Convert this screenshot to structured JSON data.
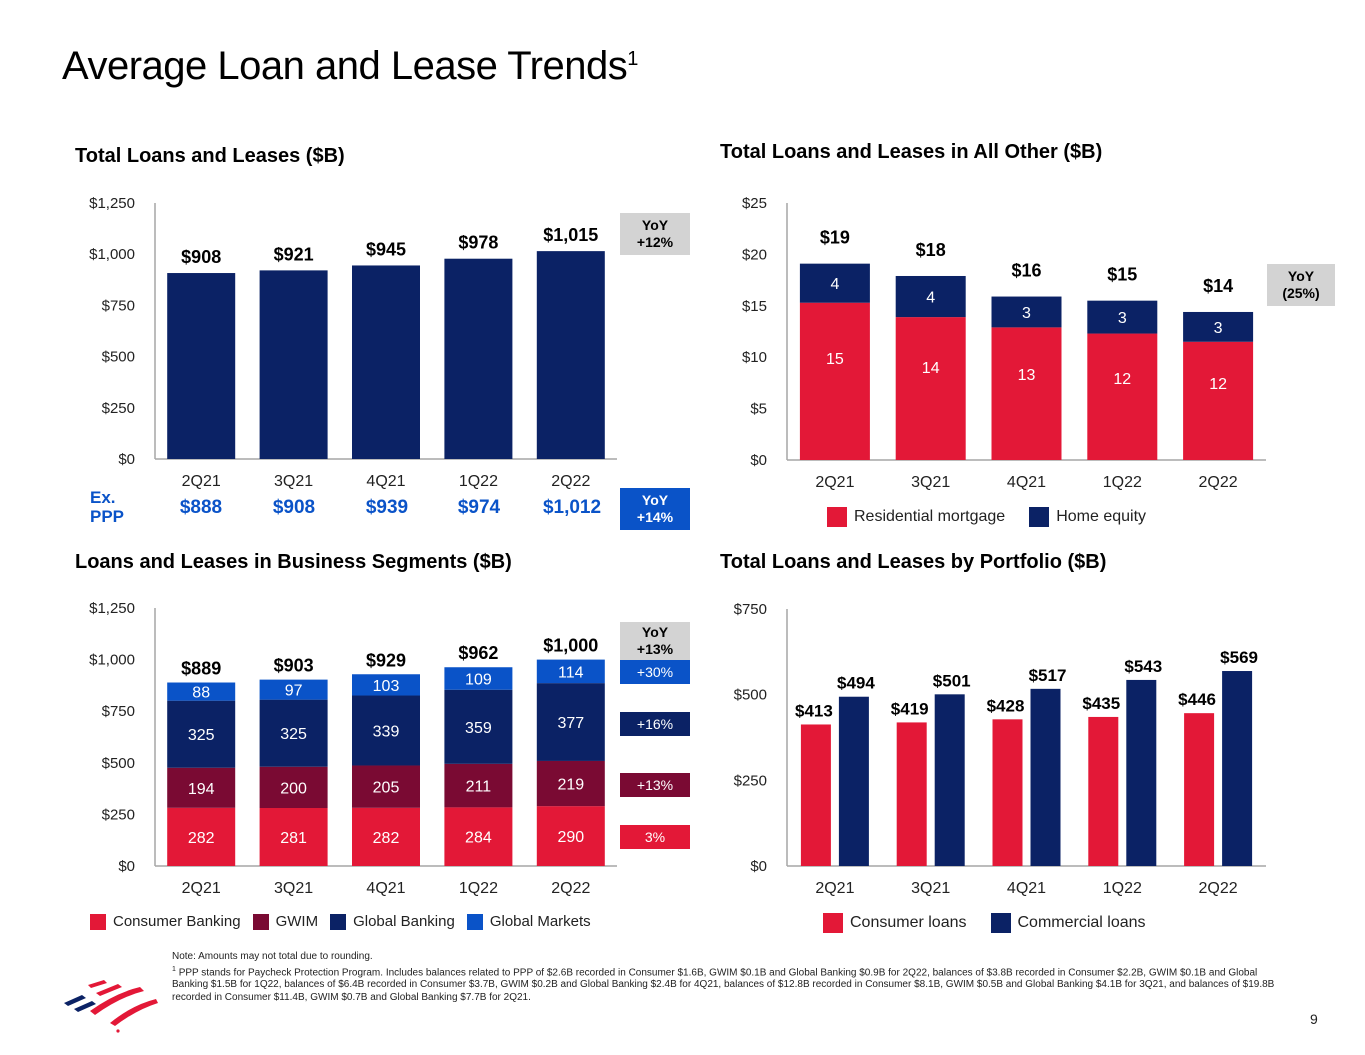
{
  "page": {
    "title": "Average Loan and Lease Trends",
    "title_footnote_marker": "1",
    "page_number": "9"
  },
  "colors": {
    "navy": "#0b2265",
    "red": "#e31837",
    "maroon": "#7a0a33",
    "blue": "#0a53c8",
    "grey_box": "#d3d3d3",
    "axis": "#a6a6a6"
  },
  "ex_ppp": {
    "label_line1": "Ex.",
    "label_line2": "PPP",
    "values": [
      "$888",
      "$908",
      "$939",
      "$974",
      "$1,012"
    ],
    "yoy_line1": "YoY",
    "yoy_line2": "+14%"
  },
  "chart_data": [
    {
      "id": "total-loans",
      "type": "bar",
      "title": "Total Loans and Leases ($B)",
      "categories": [
        "2Q21",
        "3Q21",
        "4Q21",
        "1Q22",
        "2Q22"
      ],
      "values": [
        908,
        921,
        945,
        978,
        1015
      ],
      "value_labels": [
        "$908",
        "$921",
        "$945",
        "$978",
        "$1,015"
      ],
      "ylim": [
        0,
        1250
      ],
      "yticks": [
        0,
        250,
        500,
        750,
        1000,
        1250
      ],
      "ytick_labels": [
        "$0",
        "$250",
        "$500",
        "$750",
        "$1,000",
        "$1,250"
      ],
      "xlabel": "",
      "ylabel": "",
      "grid": false,
      "series_color": "navy",
      "yoy": {
        "line1": "YoY",
        "line2": "+12%"
      }
    },
    {
      "id": "all-other",
      "type": "bar",
      "stacked": true,
      "title": "Total Loans and Leases in All Other ($B)",
      "categories": [
        "2Q21",
        "3Q21",
        "4Q21",
        "1Q22",
        "2Q22"
      ],
      "series": [
        {
          "name": "Residential mortgage",
          "color": "red",
          "values": [
            15.3,
            13.9,
            12.9,
            12.3,
            11.5
          ],
          "labels": [
            "15",
            "14",
            "13",
            "12",
            "12"
          ]
        },
        {
          "name": "Home equity",
          "color": "navy",
          "values": [
            3.8,
            4.0,
            3.0,
            3.2,
            2.9
          ],
          "labels": [
            "4",
            "4",
            "3",
            "3",
            "3"
          ]
        }
      ],
      "totals": [
        "$19",
        "$18",
        "$16",
        "$15",
        "$14"
      ],
      "ylim": [
        0,
        25
      ],
      "yticks": [
        0,
        5,
        10,
        15,
        20,
        25
      ],
      "ytick_labels": [
        "$0",
        "$5",
        "$10",
        "$15",
        "$20",
        "$25"
      ],
      "grid": false,
      "legend": "bottom",
      "yoy": {
        "line1": "YoY",
        "line2": "(25%)"
      }
    },
    {
      "id": "business-segments",
      "type": "bar",
      "stacked": true,
      "title": "Loans and Leases in Business Segments ($B)",
      "categories": [
        "2Q21",
        "3Q21",
        "4Q21",
        "1Q22",
        "2Q22"
      ],
      "series": [
        {
          "name": "Consumer Banking",
          "color": "red",
          "values": [
            282,
            281,
            282,
            284,
            290
          ],
          "yoy": "3%"
        },
        {
          "name": "GWIM",
          "color": "maroon",
          "values": [
            194,
            200,
            205,
            211,
            219
          ],
          "yoy": "+13%"
        },
        {
          "name": "Global Banking",
          "color": "navy",
          "values": [
            325,
            325,
            339,
            359,
            377
          ],
          "yoy": "+16%"
        },
        {
          "name": "Global Markets",
          "color": "blue",
          "values": [
            88,
            97,
            103,
            109,
            114
          ],
          "yoy": "+30%"
        }
      ],
      "totals": [
        "$889",
        "$903",
        "$929",
        "$962",
        "$1,000"
      ],
      "ylim": [
        0,
        1250
      ],
      "yticks": [
        0,
        250,
        500,
        750,
        1000,
        1250
      ],
      "ytick_labels": [
        "$0",
        "$250",
        "$500",
        "$750",
        "$1,000",
        "$1,250"
      ],
      "grid": false,
      "legend": "bottom",
      "yoy": {
        "line1": "YoY",
        "line2": "+13%"
      }
    },
    {
      "id": "by-portfolio",
      "type": "bar",
      "grouped": true,
      "title": "Total Loans and Leases by Portfolio ($B)",
      "categories": [
        "2Q21",
        "3Q21",
        "4Q21",
        "1Q22",
        "2Q22"
      ],
      "series": [
        {
          "name": "Consumer loans",
          "color": "red",
          "values": [
            413,
            419,
            428,
            435,
            446
          ],
          "labels": [
            "$413",
            "$419",
            "$428",
            "$435",
            "$446"
          ]
        },
        {
          "name": "Commercial loans",
          "color": "navy",
          "values": [
            494,
            501,
            517,
            543,
            569
          ],
          "labels": [
            "$494",
            "$501",
            "$517",
            "$543",
            "$569"
          ]
        }
      ],
      "ylim": [
        0,
        750
      ],
      "yticks": [
        0,
        250,
        500,
        750
      ],
      "ytick_labels": [
        "$0",
        "$250",
        "$500",
        "$750"
      ],
      "grid": false,
      "legend": "bottom"
    }
  ],
  "footnotes": {
    "note": "Note: Amounts may not total due to rounding.",
    "marker": "1",
    "text": "PPP stands for Paycheck Protection Program. Includes balances related to PPP of $2.6B recorded in Consumer $1.6B, GWIM $0.1B and Global Banking $0.9B for 2Q22, balances of $3.8B recorded in Consumer $2.2B, GWIM $0.1B and Global Banking $1.5B for 1Q22, balances of $6.4B recorded in Consumer $3.7B, GWIM $0.2B and Global Banking $2.4B for 4Q21, balances of $12.8B recorded in Consumer $8.1B, GWIM $0.5B and Global Banking $4.1B for 3Q21, and balances of $19.8B recorded in Consumer $11.4B, GWIM $0.7B and Global Banking $7.7B for 2Q21."
  },
  "logo": {
    "name": "bank-flag-logo"
  }
}
